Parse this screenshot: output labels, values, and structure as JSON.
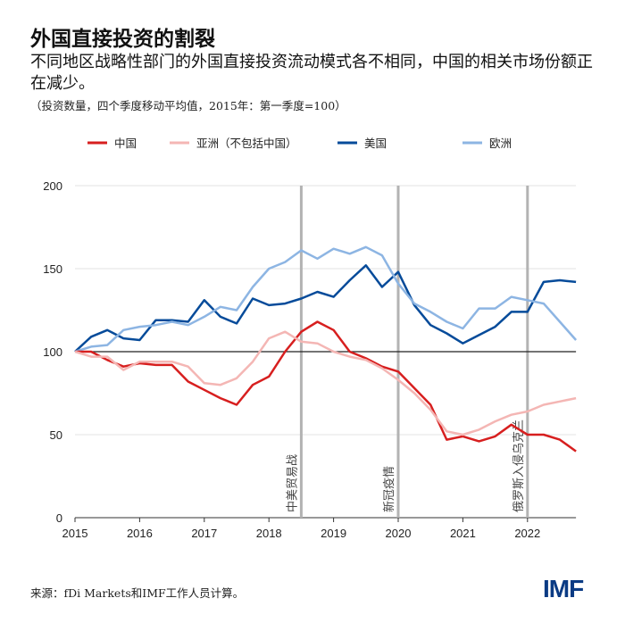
{
  "title": "外国直接投资的割裂",
  "subtitle": "不同地区战略性部门的外国直接投资流动模式各不相同，中国的相关市场份额正在减少。",
  "note": "（投资数量，四个季度移动平均值，2015年：第一季度=100）",
  "source": "来源：fDi Markets和IMF工作人员计算。",
  "logo": "IMF",
  "chart_data": {
    "type": "line",
    "x_start": "2015Q1",
    "frequency": "quarterly",
    "xticks": [
      "2015",
      "2016",
      "2017",
      "2018",
      "2019",
      "2020",
      "2021",
      "2022"
    ],
    "yticks": [
      0,
      50,
      100,
      150,
      200
    ],
    "ylim": [
      0,
      200
    ],
    "grid": "horizontal",
    "reference_line": 100,
    "legend_placement": "top",
    "series": [
      {
        "name": "中国",
        "color": "#d71f1f",
        "values": [
          100,
          100,
          95,
          91,
          93,
          92,
          92,
          82,
          77,
          72,
          68,
          80,
          85,
          100,
          112,
          118,
          113,
          100,
          96,
          91,
          88,
          78,
          68,
          47,
          49,
          46,
          49,
          56,
          50,
          50,
          47,
          40
        ]
      },
      {
        "name": "亚洲（不包括中国）",
        "color": "#f4b6b4",
        "values": [
          100,
          97,
          97,
          89,
          94,
          94,
          94,
          91,
          81,
          80,
          84,
          94,
          108,
          112,
          106,
          105,
          100,
          97,
          95,
          90,
          83,
          75,
          65,
          52,
          50,
          53,
          58,
          62,
          64,
          68,
          70,
          72
        ]
      },
      {
        "name": "美国",
        "color": "#064b9a",
        "values": [
          100,
          109,
          113,
          108,
          107,
          119,
          119,
          118,
          131,
          121,
          117,
          132,
          128,
          129,
          132,
          136,
          133,
          143,
          152,
          139,
          148,
          128,
          116,
          111,
          105,
          110,
          115,
          124,
          124,
          142,
          143,
          142
        ]
      },
      {
        "name": "欧洲",
        "color": "#8db5e3",
        "values": [
          100,
          103,
          104,
          113,
          115,
          116,
          118,
          116,
          121,
          127,
          125,
          139,
          150,
          154,
          161,
          156,
          162,
          159,
          163,
          158,
          141,
          129,
          124,
          118,
          114,
          126,
          126,
          133,
          131,
          129,
          118,
          107
        ]
      }
    ],
    "annotations": [
      {
        "x": 2018.5,
        "label": "中美贸易战"
      },
      {
        "x": 2020.0,
        "label": "新冠疫情"
      },
      {
        "x": 2022.0,
        "label": "俄罗斯入侵乌克兰"
      }
    ]
  }
}
